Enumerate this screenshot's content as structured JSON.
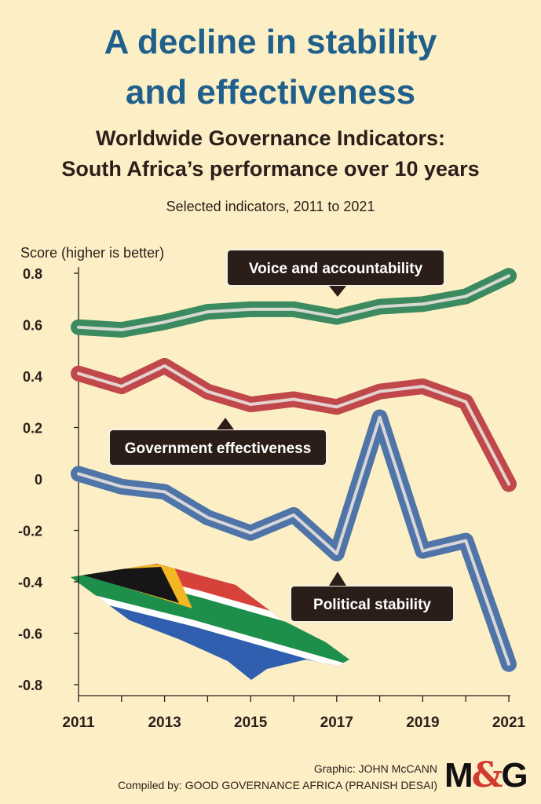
{
  "header": {
    "title_line1": "A decline in stability",
    "title_line2": "and effectiveness",
    "subtitle_line1": "Worldwide Governance Indicators:",
    "subtitle_line2": "South Africa’s performance over 10 years",
    "note": "Selected indicators, 2011 to 2021"
  },
  "chart_data": {
    "type": "line",
    "title": "A decline in stability and effectiveness",
    "subtitle": "Worldwide Governance Indicators: South Africa’s performance over 10 years",
    "ylabel": "Score (higher is better)",
    "xlabel": "",
    "ylim": [
      -0.8,
      0.8
    ],
    "yticks": [
      "0.8",
      "0.6",
      "0.4",
      "0.2",
      "0",
      "-0.2",
      "-0.4",
      "-0.6",
      "-0.8"
    ],
    "ytick_values": [
      0.8,
      0.6,
      0.4,
      0.2,
      0,
      -0.2,
      -0.4,
      -0.6,
      -0.8
    ],
    "x": [
      2011,
      2012,
      2013,
      2014,
      2015,
      2016,
      2017,
      2018,
      2019,
      2020,
      2021
    ],
    "xticks": [
      "2011",
      "2013",
      "2015",
      "2017",
      "2019",
      "2021"
    ],
    "grid": false,
    "series": [
      {
        "name": "Voice and accountability",
        "color": "#3c8a5f",
        "values": [
          0.59,
          0.58,
          0.61,
          0.65,
          0.66,
          0.66,
          0.63,
          0.67,
          0.68,
          0.71,
          0.79
        ]
      },
      {
        "name": "Government effectiveness",
        "color": "#c0484a",
        "values": [
          0.41,
          0.36,
          0.44,
          0.34,
          0.29,
          0.31,
          0.28,
          0.34,
          0.36,
          0.3,
          -0.02
        ]
      },
      {
        "name": "Political stability",
        "color": "#4f74a8",
        "values": [
          0.02,
          -0.03,
          -0.05,
          -0.15,
          -0.21,
          -0.14,
          -0.29,
          0.24,
          -0.28,
          -0.24,
          -0.72
        ]
      }
    ]
  },
  "credits": {
    "graphic": "Graphic: JOHN McCANN",
    "compiled": "Compiled by: GOOD GOVERNANCE AFRICA (PRANISH DESAI)",
    "logo_m": "M",
    "logo_amp": "&",
    "logo_g": "G"
  }
}
